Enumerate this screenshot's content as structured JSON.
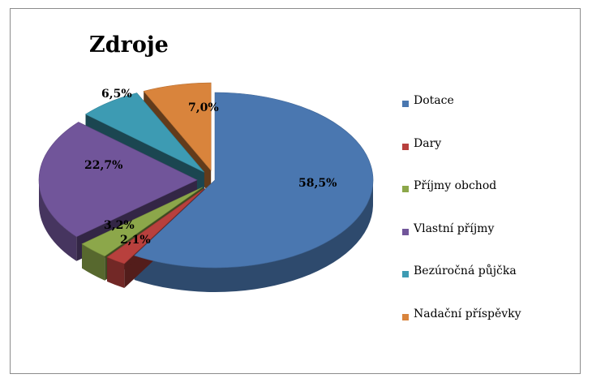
{
  "chart_data": {
    "type": "pie",
    "title": "Zdroje",
    "legend_position": "right",
    "slices": [
      {
        "name": "Dotace",
        "value": 58.5,
        "label": "58,5%",
        "color": "#4a77b0"
      },
      {
        "name": "Dary",
        "value": 2.1,
        "label": "2,1%",
        "color": "#b8403d"
      },
      {
        "name": "Příjmy obchod",
        "value": 3.2,
        "label": "3,2%",
        "color": "#8ca74a"
      },
      {
        "name": "Vlastní příjmy",
        "value": 22.7,
        "label": "22,7%",
        "color": "#71559a"
      },
      {
        "name": "Bezúročná půjčka",
        "value": 6.5,
        "label": "6,5%",
        "color": "#3d9bb3"
      },
      {
        "name": "Nadační příspěvky",
        "value": 7.0,
        "label": "7,0%",
        "color": "#d9843c"
      }
    ]
  }
}
